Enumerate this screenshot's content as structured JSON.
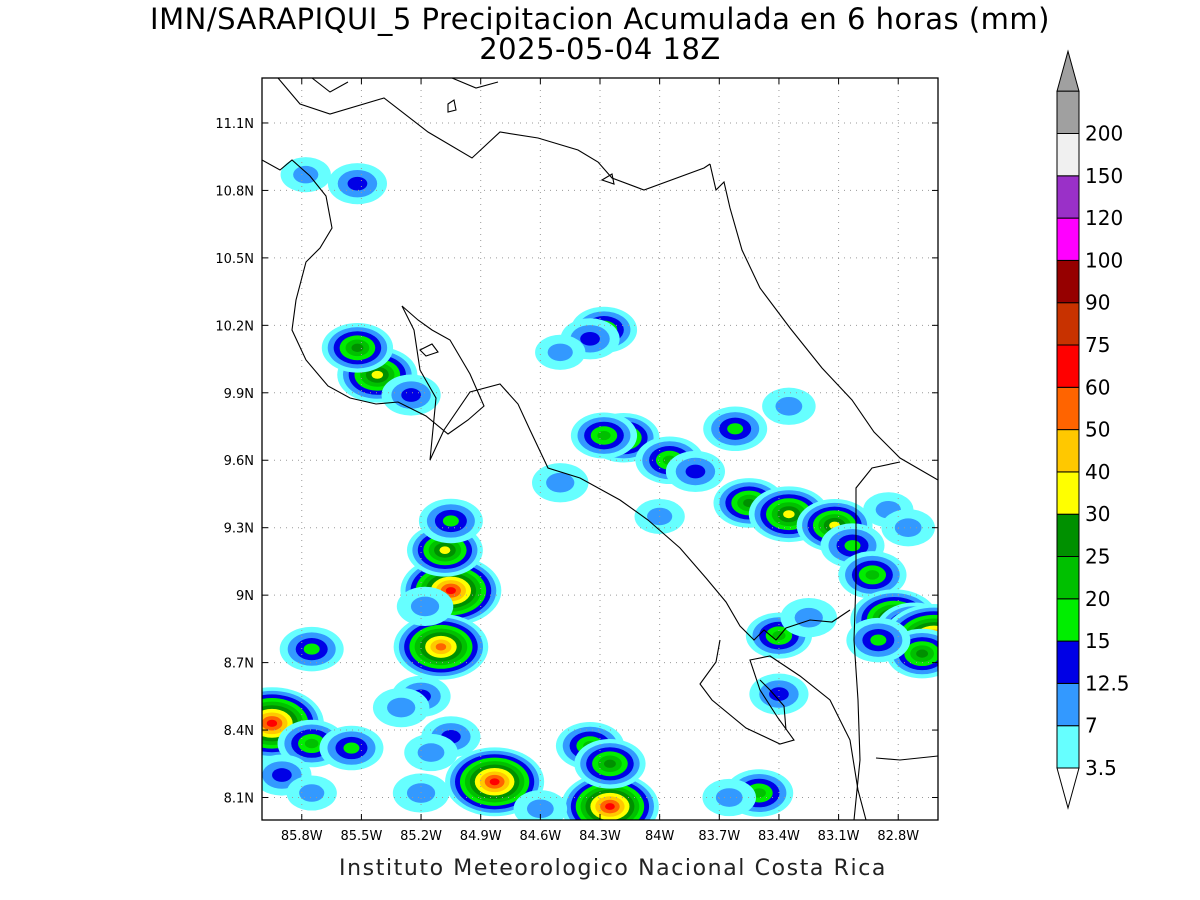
{
  "title": {
    "line1": "IMN/SARAPIQUI_5 Precipitacion Acumulada en 6 horas (mm)",
    "line2": "2025-05-04 18Z"
  },
  "footer": "Instituto Meteorologico Nacional Costa Rica",
  "map": {
    "lon_range": [
      -86.0,
      -82.6
    ],
    "lat_range": [
      8.0,
      11.3
    ],
    "lon_ticks": [
      -85.8,
      -85.5,
      -85.2,
      -84.9,
      -84.6,
      -84.3,
      -84.0,
      -83.7,
      -83.4,
      -83.1,
      -82.8
    ],
    "lon_tick_labels": [
      "85.8W",
      "85.5W",
      "85.2W",
      "84.9W",
      "84.6W",
      "84.3W",
      "84W",
      "83.7W",
      "83.4W",
      "83.1W",
      "82.8W"
    ],
    "lat_ticks": [
      8.1,
      8.4,
      8.7,
      9.0,
      9.3,
      9.6,
      9.9,
      10.2,
      10.5,
      10.8,
      11.1
    ],
    "lat_tick_labels": [
      "8.1N",
      "8.4N",
      "8.7N",
      "9N",
      "9.3N",
      "9.6N",
      "9.9N",
      "10.2N",
      "10.5N",
      "10.8N",
      "11.1N"
    ],
    "grid": "dotted"
  },
  "colorbar": {
    "labels": [
      "3.5",
      "7",
      "12.5",
      "15",
      "20",
      "25",
      "30",
      "40",
      "50",
      "60",
      "75",
      "90",
      "100",
      "120",
      "150",
      "200"
    ],
    "colors": [
      "#66ffff",
      "#3399ff",
      "#0000e6",
      "#00ee00",
      "#00c000",
      "#009000",
      "#ffff00",
      "#ffc800",
      "#ff6400",
      "#ff0000",
      "#c83200",
      "#960000",
      "#ff00ff",
      "#9a30c8",
      "#f0f0f0",
      "#a0a0a0"
    ],
    "under_color": "#ffffff",
    "over_color": "#a0a0a0"
  },
  "precip_cells": [
    {
      "lon": -85.95,
      "lat": 8.43,
      "peak": 70
    },
    {
      "lon": -85.75,
      "lat": 8.34,
      "peak": 22
    },
    {
      "lon": -85.55,
      "lat": 8.32,
      "peak": 18
    },
    {
      "lon": -85.9,
      "lat": 8.2,
      "peak": 14
    },
    {
      "lon": -85.75,
      "lat": 8.12,
      "peak": 8
    },
    {
      "lon": -85.05,
      "lat": 9.02,
      "peak": 65
    },
    {
      "lon": -85.1,
      "lat": 8.77,
      "peak": 55
    },
    {
      "lon": -85.08,
      "lat": 9.2,
      "peak": 30
    },
    {
      "lon": -85.05,
      "lat": 9.33,
      "peak": 18
    },
    {
      "lon": -85.18,
      "lat": 8.95,
      "peak": 12
    },
    {
      "lon": -85.2,
      "lat": 8.55,
      "peak": 14
    },
    {
      "lon": -85.3,
      "lat": 8.5,
      "peak": 12
    },
    {
      "lon": -85.05,
      "lat": 8.37,
      "peak": 14
    },
    {
      "lon": -85.15,
      "lat": 8.3,
      "peak": 10
    },
    {
      "lon": -84.83,
      "lat": 8.17,
      "peak": 62
    },
    {
      "lon": -84.25,
      "lat": 8.06,
      "peak": 60
    },
    {
      "lon": -84.35,
      "lat": 8.33,
      "peak": 22
    },
    {
      "lon": -84.25,
      "lat": 8.25,
      "peak": 25
    },
    {
      "lon": -84.6,
      "lat": 8.05,
      "peak": 10
    },
    {
      "lon": -85.2,
      "lat": 8.12,
      "peak": 12
    },
    {
      "lon": -83.5,
      "lat": 8.12,
      "peak": 22
    },
    {
      "lon": -83.65,
      "lat": 8.1,
      "peak": 10
    },
    {
      "lon": -85.42,
      "lat": 9.98,
      "peak": 35
    },
    {
      "lon": -85.52,
      "lat": 10.1,
      "peak": 25
    },
    {
      "lon": -85.25,
      "lat": 9.89,
      "peak": 14
    },
    {
      "lon": -85.52,
      "lat": 10.83,
      "peak": 14
    },
    {
      "lon": -85.78,
      "lat": 10.87,
      "peak": 8
    },
    {
      "lon": -84.28,
      "lat": 10.18,
      "peak": 20
    },
    {
      "lon": -84.35,
      "lat": 10.14,
      "peak": 14
    },
    {
      "lon": -84.5,
      "lat": 10.08,
      "peak": 8
    },
    {
      "lon": -84.18,
      "lat": 9.7,
      "peak": 25
    },
    {
      "lon": -84.28,
      "lat": 9.71,
      "peak": 20
    },
    {
      "lon": -83.95,
      "lat": 9.6,
      "peak": 22
    },
    {
      "lon": -83.82,
      "lat": 9.55,
      "peak": 14
    },
    {
      "lon": -83.62,
      "lat": 9.74,
      "peak": 18
    },
    {
      "lon": -84.5,
      "lat": 9.5,
      "peak": 12
    },
    {
      "lon": -83.55,
      "lat": 9.41,
      "peak": 25
    },
    {
      "lon": -83.35,
      "lat": 9.36,
      "peak": 35
    },
    {
      "lon": -83.12,
      "lat": 9.31,
      "peak": 30
    },
    {
      "lon": -83.03,
      "lat": 9.22,
      "peak": 18
    },
    {
      "lon": -82.93,
      "lat": 9.09,
      "peak": 22
    },
    {
      "lon": -82.82,
      "lat": 8.89,
      "peak": 45
    },
    {
      "lon": -82.72,
      "lat": 8.85,
      "peak": 30
    },
    {
      "lon": -82.62,
      "lat": 8.8,
      "peak": 70
    },
    {
      "lon": -82.68,
      "lat": 8.74,
      "peak": 25
    },
    {
      "lon": -83.4,
      "lat": 8.82,
      "peak": 20
    },
    {
      "lon": -83.4,
      "lat": 8.56,
      "peak": 14
    },
    {
      "lon": -83.25,
      "lat": 8.9,
      "peak": 12
    },
    {
      "lon": -85.75,
      "lat": 8.76,
      "peak": 18
    },
    {
      "lon": -83.35,
      "lat": 9.84,
      "peak": 10
    },
    {
      "lon": -84.0,
      "lat": 9.35,
      "peak": 8
    },
    {
      "lon": -82.9,
      "lat": 8.8,
      "peak": 18
    },
    {
      "lon": -82.85,
      "lat": 9.38,
      "peak": 8
    },
    {
      "lon": -82.75,
      "lat": 9.3,
      "peak": 10
    }
  ]
}
